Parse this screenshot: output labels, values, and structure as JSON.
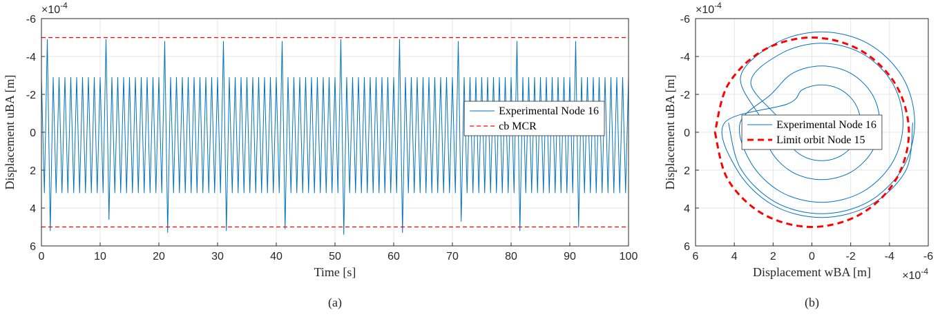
{
  "chart_data": [
    {
      "type": "line",
      "caption": "(a)",
      "xlabel": "Time [s]",
      "ylabel": "Displacement uBA [m]",
      "y_multiplier": {
        "base": "×10",
        "exponent": "-4"
      },
      "xlim": [
        0,
        100
      ],
      "ylim": [
        -6,
        6
      ],
      "ydir": "reverse",
      "xticks": [
        0,
        10,
        20,
        30,
        40,
        50,
        60,
        70,
        80,
        90,
        100
      ],
      "yticks": [
        -6,
        -4,
        -2,
        0,
        2,
        4,
        6
      ],
      "grid": true,
      "legend": "east",
      "series": [
        {
          "name": "Experimental Node 16",
          "color": "#0072bd",
          "line_style": "solid",
          "x": [
            0,
            0.5,
            1,
            1.5,
            2,
            2.5,
            3,
            3.5,
            4,
            4.5,
            5,
            5.5,
            6,
            6.5,
            7,
            7.5,
            8,
            8.5,
            9,
            9.5,
            10,
            10.5,
            11,
            11.5,
            12,
            12.5,
            13,
            13.5,
            14,
            14.5,
            15,
            15.5,
            16,
            16.5,
            17,
            17.5,
            18,
            18.5,
            19,
            19.5,
            20,
            20.5,
            21,
            21.5,
            22,
            22.5,
            23,
            23.5,
            24,
            24.5,
            25,
            25.5,
            26,
            26.5,
            27,
            27.5,
            28,
            28.5,
            29,
            29.5,
            30,
            30.5,
            31,
            31.5,
            32,
            32.5,
            33,
            33.5,
            34,
            34.5,
            35,
            35.5,
            36,
            36.5,
            37,
            37.5,
            38,
            38.5,
            39,
            39.5,
            40,
            40.5,
            41,
            41.5,
            42,
            42.5,
            43,
            43.5,
            44,
            44.5,
            45,
            45.5,
            46,
            46.5,
            47,
            47.5,
            48,
            48.5,
            49,
            49.5,
            50,
            50.5,
            51,
            51.5,
            52,
            52.5,
            53,
            53.5,
            54,
            54.5,
            55,
            55.5,
            56,
            56.5,
            57,
            57.5,
            58,
            58.5,
            59,
            59.5,
            60,
            60.5,
            61,
            61.5,
            62,
            62.5,
            63,
            63.5,
            64,
            64.5,
            65,
            65.5,
            66,
            66.5,
            67,
            67.5,
            68,
            68.5,
            69,
            69.5,
            70,
            70.5,
            71,
            71.5,
            72,
            72.5,
            73,
            73.5,
            74,
            74.5,
            75,
            75.5,
            76,
            76.5,
            77,
            77.5,
            78,
            78.5,
            79,
            79.5,
            80,
            80.5,
            81,
            81.5,
            82,
            82.5,
            83,
            83.5,
            84,
            84.5,
            85,
            85.5,
            86,
            86.5,
            87,
            87.5,
            88,
            88.5,
            89,
            89.5,
            90,
            90.5,
            91,
            91.5,
            92,
            92.5,
            93,
            93.5,
            94,
            94.5,
            95,
            95.5,
            96,
            96.5,
            97,
            97.5,
            98,
            98.5,
            99,
            99.5,
            100
          ],
          "values": [
            -2.9,
            3.2,
            -4.9,
            5.2,
            -2.9,
            3.2,
            -2.9,
            3.2,
            -2.9,
            3.2,
            -2.9,
            3.2,
            -2.9,
            3.2,
            -2.9,
            3.2,
            -2.9,
            3.2,
            -2.9,
            3.2,
            -2.9,
            3.2,
            -4.9,
            4.6,
            -2.9,
            3.2,
            -2.9,
            3.2,
            -2.9,
            3.2,
            -2.9,
            3.2,
            -2.9,
            3.2,
            -2.9,
            3.2,
            -2.9,
            3.2,
            -2.9,
            3.2,
            -2.9,
            3.2,
            -4.8,
            5.3,
            -2.9,
            3.2,
            -2.9,
            3.2,
            -2.9,
            3.2,
            -2.9,
            3.2,
            -2.9,
            3.2,
            -2.9,
            3.2,
            -2.9,
            3.2,
            -2.9,
            3.2,
            -2.9,
            3.2,
            -4.8,
            5.2,
            -2.9,
            3.2,
            -2.9,
            3.2,
            -2.9,
            3.2,
            -2.9,
            3.2,
            -2.9,
            3.2,
            -2.9,
            3.2,
            -2.9,
            3.2,
            -2.9,
            3.2,
            -2.9,
            3.2,
            -4.8,
            5.1,
            -2.9,
            3.2,
            -2.9,
            3.2,
            -2.9,
            3.2,
            -2.9,
            3.2,
            -2.9,
            3.2,
            -2.9,
            3.2,
            -2.9,
            3.2,
            -2.9,
            3.2,
            -2.9,
            3.2,
            -4.9,
            5.4,
            -2.9,
            3.2,
            -2.9,
            3.2,
            -2.9,
            3.2,
            -2.9,
            3.2,
            -2.9,
            3.2,
            -2.9,
            3.2,
            -2.9,
            3.2,
            -2.9,
            3.2,
            -2.9,
            3.2,
            -4.9,
            5.3,
            -2.9,
            3.2,
            -2.9,
            3.2,
            -2.9,
            3.2,
            -2.9,
            3.2,
            -2.9,
            3.2,
            -2.9,
            3.2,
            -2.9,
            3.2,
            -2.9,
            3.2,
            -2.9,
            3.2,
            -4.8,
            4.7,
            -2.9,
            3.2,
            -2.9,
            3.2,
            -2.9,
            3.2,
            -2.9,
            3.2,
            -2.9,
            3.2,
            -2.9,
            3.2,
            -2.9,
            3.2,
            -2.9,
            3.2,
            -2.9,
            3.2,
            -4.8,
            5.2,
            -2.9,
            3.2,
            -2.9,
            3.2,
            -2.9,
            3.2,
            -2.9,
            3.2,
            -2.9,
            3.2,
            -2.9,
            3.2,
            -2.9,
            3.2,
            -2.9,
            3.2,
            -2.9,
            3.2,
            -4.8,
            5.0,
            -2.9,
            3.2,
            -2.9,
            3.2,
            -2.9,
            3.2,
            -2.9,
            3.2,
            -2.9,
            3.2,
            -2.9,
            3.2,
            -2.9,
            3.2,
            -2.9,
            3.2,
            -2.9
          ]
        },
        {
          "name": "cb MCR",
          "color": "#ff0000",
          "line_style": "dashed",
          "x": [
            0,
            100
          ],
          "values": [
            -5,
            -5
          ]
        },
        {
          "name": "cb MCR",
          "color": "#ff0000",
          "line_style": "dashed",
          "x": [
            0,
            100
          ],
          "values": [
            5,
            5
          ]
        }
      ]
    },
    {
      "type": "line",
      "caption": "(b)",
      "xlabel": "Displacement wBA [m]",
      "ylabel": "Displacement uBA [m]",
      "x_multiplier": {
        "base": "×10",
        "exponent": "-4"
      },
      "y_multiplier": {
        "base": "×10",
        "exponent": "-4"
      },
      "xlim": [
        -6,
        6
      ],
      "ylim": [
        -6,
        6
      ],
      "xdir": "reverse",
      "ydir": "reverse",
      "xticks": [
        -6,
        -4,
        -2,
        0,
        2,
        4,
        6
      ],
      "yticks": [
        -6,
        -4,
        -2,
        0,
        2,
        4,
        6
      ],
      "grid": true,
      "legend": "center",
      "smooth": true,
      "series": [
        {
          "name": "Experimental Node 16",
          "color": "#0072bd",
          "line_style": "solid",
          "x": [
            4.3,
            3.68,
            1.9,
            -0.5,
            -2.9,
            -4.68,
            -5.3,
            -4.68,
            -2.9,
            -0.5,
            1.9,
            3.68,
            2.5,
            2.11,
            1.0,
            -0.5,
            -2.0,
            -3.11,
            -3.5,
            -3.11,
            -2.0,
            -0.5,
            1.0,
            2.11,
            3.7,
            3.15,
            1.6,
            -0.5,
            -2.6,
            -4.15,
            -4.7,
            -4.15,
            -2.6,
            -0.5,
            1.6,
            3.15,
            1.5,
            1.24,
            0.5,
            -0.5,
            -1.5,
            -2.24,
            -2.5,
            -2.24,
            -1.5,
            -0.5,
            0.5,
            1.24,
            4.5,
            3.85,
            2.0,
            -0.5,
            -3.0,
            -4.85,
            -5.2
          ],
          "values": [
            -0.5,
            1.9,
            3.68,
            4.3,
            3.68,
            1.9,
            -0.5,
            -2.9,
            -4.68,
            -5.3,
            -4.68,
            -2.9,
            -0.5,
            1.0,
            2.11,
            2.5,
            2.11,
            1.0,
            -0.5,
            -2.0,
            -3.11,
            -3.5,
            -3.11,
            -2.0,
            -0.5,
            1.6,
            3.15,
            3.7,
            3.15,
            1.6,
            -0.5,
            -2.6,
            -4.15,
            -4.7,
            -4.15,
            -2.6,
            -0.5,
            0.5,
            1.24,
            1.5,
            1.24,
            0.5,
            -0.5,
            -1.5,
            -2.24,
            -2.5,
            -2.24,
            -1.5,
            -0.5,
            2.0,
            3.85,
            4.5,
            3.85,
            2.0,
            -0.5
          ]
        },
        {
          "name": "Limit orbit Node 15",
          "color": "#ff0000",
          "line_style": "dashed-bold",
          "x": [
            5,
            4.33,
            2.5,
            0,
            -2.5,
            -4.33,
            -5,
            -4.33,
            -2.5,
            0,
            2.5,
            4.33,
            5
          ],
          "values": [
            0,
            2.5,
            4.33,
            5,
            4.33,
            2.5,
            0,
            -2.5,
            -4.33,
            -5,
            -4.33,
            -2.5,
            0
          ]
        }
      ]
    }
  ]
}
